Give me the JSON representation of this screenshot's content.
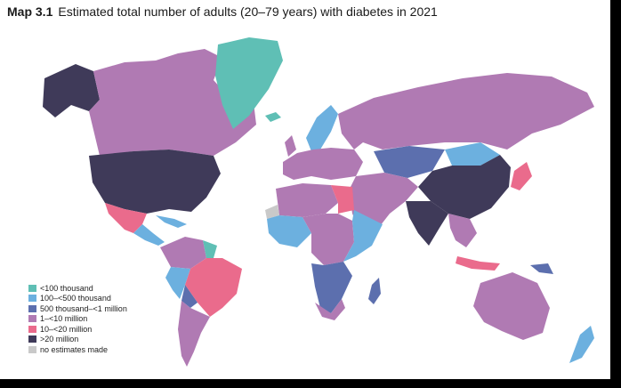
{
  "title": {
    "label": "Map 3.1",
    "text": "Estimated total number of adults (20–79 years) with diabetes in 2021"
  },
  "legend": [
    {
      "label": "<100 thousand",
      "color": "#5fbfb5"
    },
    {
      "label": "100–<500 thousand",
      "color": "#6cb0df"
    },
    {
      "label": "500 thousand–<1 million",
      "color": "#5c6fae"
    },
    {
      "label": "1–<10 million",
      "color": "#b07ab3"
    },
    {
      "label": "10–<20 million",
      "color": "#ea6b8c"
    },
    {
      "label": ">20 million",
      "color": "#3f3a59"
    },
    {
      "label": "no estimates made",
      "color": "#c9c9c9"
    }
  ]
}
